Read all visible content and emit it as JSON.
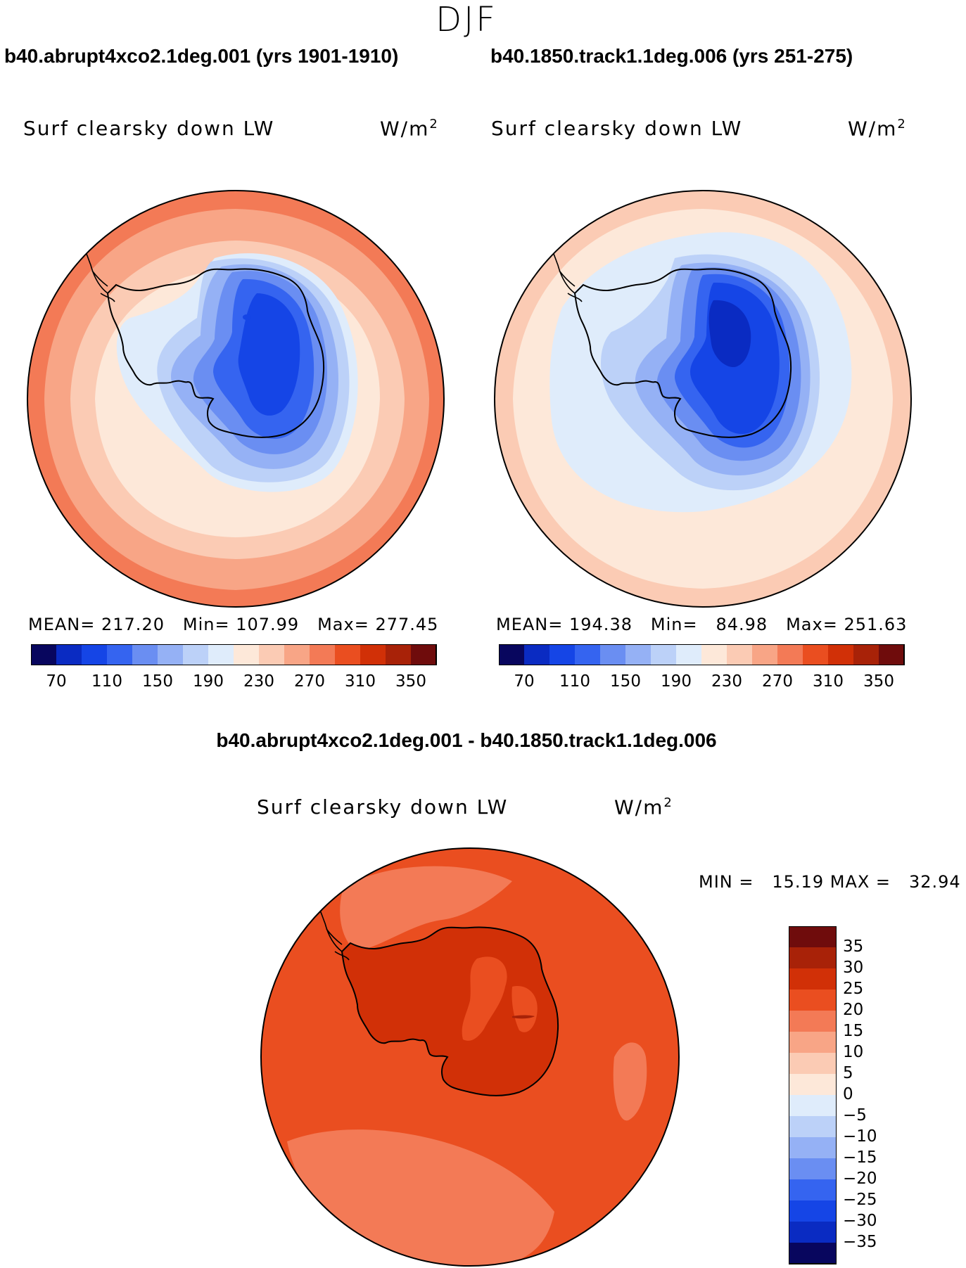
{
  "figure": {
    "season": "DJF",
    "difference_title": "b40.abrupt4xco2.1deg.001 - b40.1850.track1.1deg.006"
  },
  "panels": [
    {
      "case_title": "b40.abrupt4xco2.1deg.001 (yrs 1901-1910)",
      "variable": "Surf clearsky down LW",
      "units_base": "W/m",
      "units_exp": "2",
      "stats": {
        "mean_label": "MEAN=",
        "mean": "217.20",
        "min_label": "Min=",
        "min": "107.99",
        "max_label": "Max=",
        "max": "277.45"
      }
    },
    {
      "case_title": "b40.1850.track1.1deg.006 (yrs 251-275)",
      "variable": "Surf clearsky down LW",
      "units_base": "W/m",
      "units_exp": "2",
      "stats": {
        "mean_label": "MEAN=",
        "mean": "194.38",
        "min_label": "Min=",
        "min": "84.98",
        "max_label": "Max=",
        "max": "251.63"
      }
    }
  ],
  "difference": {
    "variable": "Surf clearsky down LW",
    "units_base": "W/m",
    "units_exp": "2",
    "minmax": {
      "min_label": "MIN =",
      "min": "15.19",
      "max_label": "MAX =",
      "max": "32.94"
    }
  },
  "colorbars": {
    "field": {
      "colors": [
        "#08065e",
        "#0a2bc2",
        "#1545e6",
        "#3564f0",
        "#6a8ef2",
        "#95b1f5",
        "#bcd1f8",
        "#dfecfb",
        "#fde8d9",
        "#fbcbb4",
        "#f8a586",
        "#f37a56",
        "#ea4e20",
        "#d13007",
        "#a82208",
        "#6f0c0c"
      ],
      "labels": [
        "70",
        "110",
        "150",
        "190",
        "230",
        "270",
        "310",
        "350"
      ]
    },
    "diff": {
      "colors": [
        "#08065e",
        "#0a2bc2",
        "#1545e6",
        "#3564f0",
        "#6a8ef2",
        "#95b1f5",
        "#bcd1f8",
        "#dfecfb",
        "#fde8d9",
        "#fbcbb4",
        "#f8a586",
        "#f37a56",
        "#ea4e20",
        "#d13007",
        "#a82208",
        "#6f0c0c"
      ],
      "labels": [
        "35",
        "30",
        "25",
        "20",
        "15",
        "10",
        "5",
        "0",
        "−5",
        "−10",
        "−15",
        "−20",
        "−25",
        "−30",
        "−35"
      ]
    }
  },
  "map_colors": {
    "p1": {
      "ring1": "#f37a56",
      "ring2": "#f8a586",
      "ring3": "#fbcbb4",
      "ring4": "#fde8d9",
      "c1": "#dfecfb",
      "c2": "#bcd1f8",
      "c3": "#95b1f5",
      "c4": "#6a8ef2",
      "c5": "#3564f0",
      "c6": "#1545e6"
    },
    "p2": {
      "ring1": "#fbcbb4",
      "ring2": "#fde8d9",
      "ring3": "#fde8d9",
      "ring4": "#dfecfb",
      "c1": "#bcd1f8",
      "c2": "#95b1f5",
      "c3": "#6a8ef2",
      "c4": "#3564f0",
      "c5": "#1545e6",
      "c6": "#0a2bc2"
    },
    "p3": {
      "base": "#ea4e20",
      "light": "#f37a56",
      "lighter": "#f8a586",
      "land": "#d13007",
      "dark": "#a82208"
    }
  }
}
